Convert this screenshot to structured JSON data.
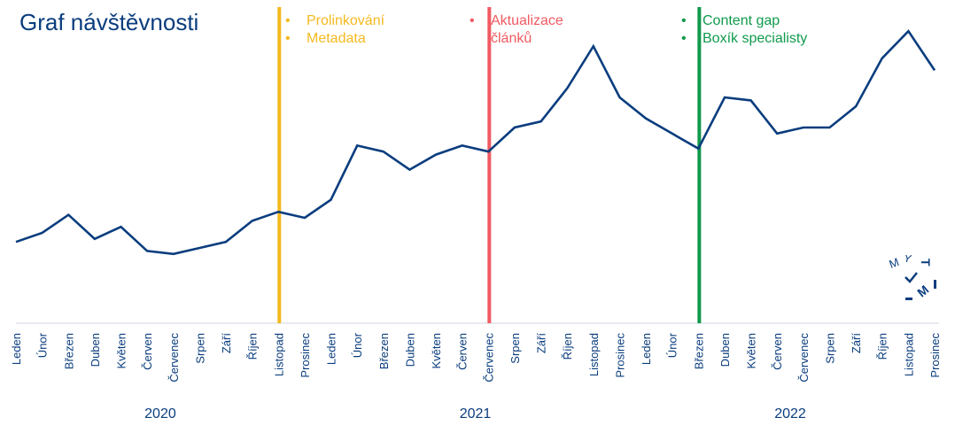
{
  "title": "Graf návštěvnosti",
  "colors": {
    "line": "#0a3d7e",
    "axis": "#0a3d7e",
    "annotation_orange": "#f5b91e",
    "annotation_red": "#f05a62",
    "annotation_green": "#109a4c"
  },
  "annotations": [
    {
      "color": "#f5b91e",
      "after_index": 10,
      "items": [
        "Prolinkování",
        "Metadata"
      ]
    },
    {
      "color": "#f05a62",
      "after_index": 18,
      "items": [
        "Aktualizace článků"
      ]
    },
    {
      "color": "#109a4c",
      "after_index": 26,
      "items": [
        "Content gap",
        "Boxík specialisty"
      ]
    }
  ],
  "logo": {
    "letters": [
      "M",
      "Y",
      "T",
      "I",
      "M"
    ]
  },
  "chart_data": {
    "type": "line",
    "title": "Graf návštěvnosti",
    "years": [
      {
        "label": "2020",
        "start_index": 0,
        "end_index": 11
      },
      {
        "label": "2021",
        "start_index": 12,
        "end_index": 23
      },
      {
        "label": "2022",
        "start_index": 24,
        "end_index": 35
      }
    ],
    "categories": [
      "Leden",
      "Únor",
      "Březen",
      "Duben",
      "Květen",
      "Červen",
      "Červenec",
      "Srpen",
      "Září",
      "Říjen",
      "Listopad",
      "Prosinec",
      "Leden",
      "Únor",
      "Březen",
      "Duben",
      "Květen",
      "Červen",
      "Červenec",
      "Srpen",
      "Září",
      "Říjen",
      "Listopad",
      "Prosinec",
      "Leden",
      "Únor",
      "Březen",
      "Duben",
      "Květen",
      "Červen",
      "Červenec",
      "Srpen",
      "Září",
      "Říjen",
      "Listopad",
      "Prosinec"
    ],
    "series": [
      {
        "values": [
          27,
          30,
          36,
          28,
          32,
          24,
          23,
          25,
          27,
          34,
          37,
          35,
          41,
          59,
          57,
          51,
          56,
          59,
          57,
          65,
          67,
          78,
          92,
          75,
          68,
          63,
          58,
          75,
          74,
          63,
          65,
          65,
          72,
          88,
          97,
          84
        ]
      }
    ],
    "ylim": [
      0,
      100
    ],
    "grid": false,
    "legend": "none"
  }
}
